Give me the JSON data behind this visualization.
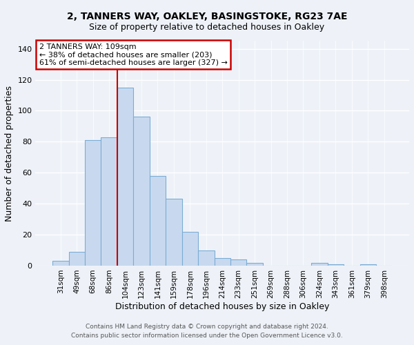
{
  "title1": "2, TANNERS WAY, OAKLEY, BASINGSTOKE, RG23 7AE",
  "title2": "Size of property relative to detached houses in Oakley",
  "xlabel": "Distribution of detached houses by size in Oakley",
  "ylabel": "Number of detached properties",
  "bar_labels": [
    "31sqm",
    "49sqm",
    "68sqm",
    "86sqm",
    "104sqm",
    "123sqm",
    "141sqm",
    "159sqm",
    "178sqm",
    "196sqm",
    "214sqm",
    "233sqm",
    "251sqm",
    "269sqm",
    "288sqm",
    "306sqm",
    "324sqm",
    "343sqm",
    "361sqm",
    "379sqm",
    "398sqm"
  ],
  "bar_values": [
    3,
    9,
    81,
    83,
    115,
    96,
    58,
    43,
    22,
    10,
    5,
    4,
    2,
    0,
    0,
    0,
    2,
    1,
    0,
    1,
    0
  ],
  "bar_color": "#c8d9ef",
  "bar_edge_color": "#7bacd4",
  "vline_bar_index": 4,
  "vline_color": "#cc0000",
  "ylim": [
    0,
    145
  ],
  "yticks": [
    0,
    20,
    40,
    60,
    80,
    100,
    120,
    140
  ],
  "annotation_title": "2 TANNERS WAY: 109sqm",
  "annotation_line1": "← 38% of detached houses are smaller (203)",
  "annotation_line2": "61% of semi-detached houses are larger (327) →",
  "annotation_box_color": "#ffffff",
  "annotation_box_edge": "#cc0000",
  "footer1": "Contains HM Land Registry data © Crown copyright and database right 2024.",
  "footer2": "Contains public sector information licensed under the Open Government Licence v3.0.",
  "bg_color": "#eef2f8"
}
